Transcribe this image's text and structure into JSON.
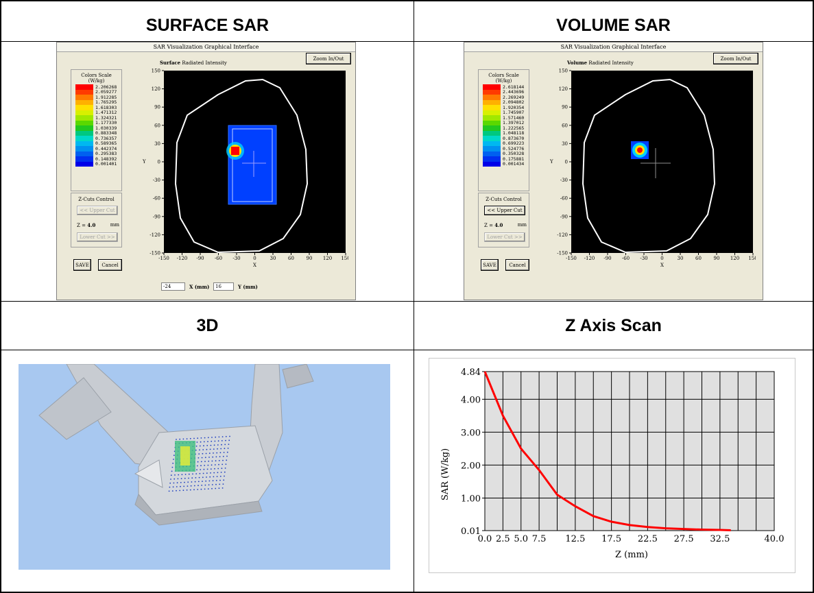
{
  "headers": {
    "surface": "SURFACE SAR",
    "volume": "VOLUME SAR",
    "three_d": "3D",
    "z_axis": "Z Axis Scan"
  },
  "surface_panel": {
    "window_title": "SAR Visualization Graphical Interface",
    "mode_bold": "Surface",
    "mode_rest": "Radiated Intensity",
    "zoom_button": "Zoom In/Out",
    "scale_title": "Colors Scale",
    "scale_unit": "(W/kg)",
    "scale_values": [
      "2.206268",
      "2.059277",
      "1.912285",
      "1.765295",
      "1.618303",
      "1.471312",
      "1.324321",
      "1.177330",
      "1.030339",
      "0.883348",
      "0.736357",
      "0.589365",
      "0.442374",
      "0.295383",
      "0.148392",
      "0.001401"
    ],
    "zcuts_title": "Z-Cuts Control",
    "upper_cut": "<< Upper Cut",
    "z_label": "Z =",
    "z_value": "4.0",
    "z_unit": "mm",
    "lower_cut": "Lower Cut >>",
    "save": "SAVE",
    "cancel": "Cancel",
    "x_field": "-24",
    "x_label": "X (mm)",
    "y_field": "16",
    "y_label": "Y (mm)",
    "y_ticks": [
      "150",
      "120",
      "90",
      "60",
      "30",
      "0",
      "-30",
      "-60",
      "-90",
      "-120",
      "-150"
    ],
    "x_ticks": [
      "-150",
      "-120",
      "-90",
      "-60",
      "-30",
      "0",
      "30",
      "60",
      "90",
      "120",
      "150"
    ],
    "x_axis_letter": "X",
    "y_axis_letter": "Y"
  },
  "volume_panel": {
    "window_title": "SAR Visualization Graphical Interface",
    "mode_bold": "Volume",
    "mode_rest": "Radiated Intensity",
    "zoom_button": "Zoom In/Out",
    "scale_title": "Colors Scale",
    "scale_unit": "(W/kg)",
    "scale_values": [
      "2.618144",
      "2.443696",
      "2.269249",
      "2.094802",
      "1.920354",
      "1.745907",
      "1.571460",
      "1.397012",
      "1.222565",
      "1.048118",
      "0.873670",
      "0.699223",
      "0.524776",
      "0.350328",
      "0.175881",
      "0.001434"
    ],
    "zcuts_title": "Z-Cuts Control",
    "upper_cut": "<< Upper Cut",
    "z_label": "Z =",
    "z_value": "4.0",
    "z_unit": "mm",
    "lower_cut": "Lower Cut >>",
    "save": "SAVE",
    "cancel": "Cancel",
    "y_ticks": [
      "150",
      "120",
      "90",
      "60",
      "30",
      "0",
      "-30",
      "-60",
      "-90",
      "-120",
      "-150"
    ],
    "x_ticks": [
      "-150",
      "-120",
      "-90",
      "-60",
      "-30",
      "0",
      "30",
      "60",
      "90",
      "120",
      "150"
    ],
    "x_axis_letter": "X",
    "y_axis_letter": "Y"
  },
  "scale_colors": [
    "#ff0000",
    "#ff3a00",
    "#ff7a00",
    "#ffb000",
    "#ffe000",
    "#d8f000",
    "#a0e800",
    "#5ad800",
    "#20c820",
    "#00c880",
    "#00d8c8",
    "#00b8f0",
    "#0090f0",
    "#0060f0",
    "#0030f0",
    "#0000e8"
  ],
  "chart_data": {
    "type": "line",
    "title": "",
    "xlabel": "Z (mm)",
    "ylabel": "SAR (W/kg)",
    "xlim": [
      0,
      40
    ],
    "ylim": [
      0.01,
      4.84
    ],
    "x_tick_labels": [
      "0.0",
      "2.5",
      "5.0",
      "7.5",
      "12.5",
      "17.5",
      "22.5",
      "27.5",
      "32.5",
      "40.0"
    ],
    "x_tick_values": [
      0,
      2.5,
      5,
      7.5,
      12.5,
      17.5,
      22.5,
      27.5,
      32.5,
      40
    ],
    "y_tick_labels": [
      "4.84",
      "4.00",
      "3.00",
      "2.00",
      "1.00",
      "0.01"
    ],
    "y_tick_values": [
      4.84,
      4.0,
      3.0,
      2.0,
      1.0,
      0.01
    ],
    "grid": true,
    "series": [
      {
        "color": "#ff0000",
        "x": [
          0,
          2.5,
          5,
          7.5,
          10,
          12.5,
          15,
          17.5,
          20,
          22.5,
          25,
          27.5,
          30,
          32.5,
          34
        ],
        "y": [
          4.84,
          3.5,
          2.5,
          1.85,
          1.1,
          0.75,
          0.45,
          0.28,
          0.18,
          0.12,
          0.08,
          0.06,
          0.04,
          0.03,
          0.02
        ]
      }
    ]
  }
}
